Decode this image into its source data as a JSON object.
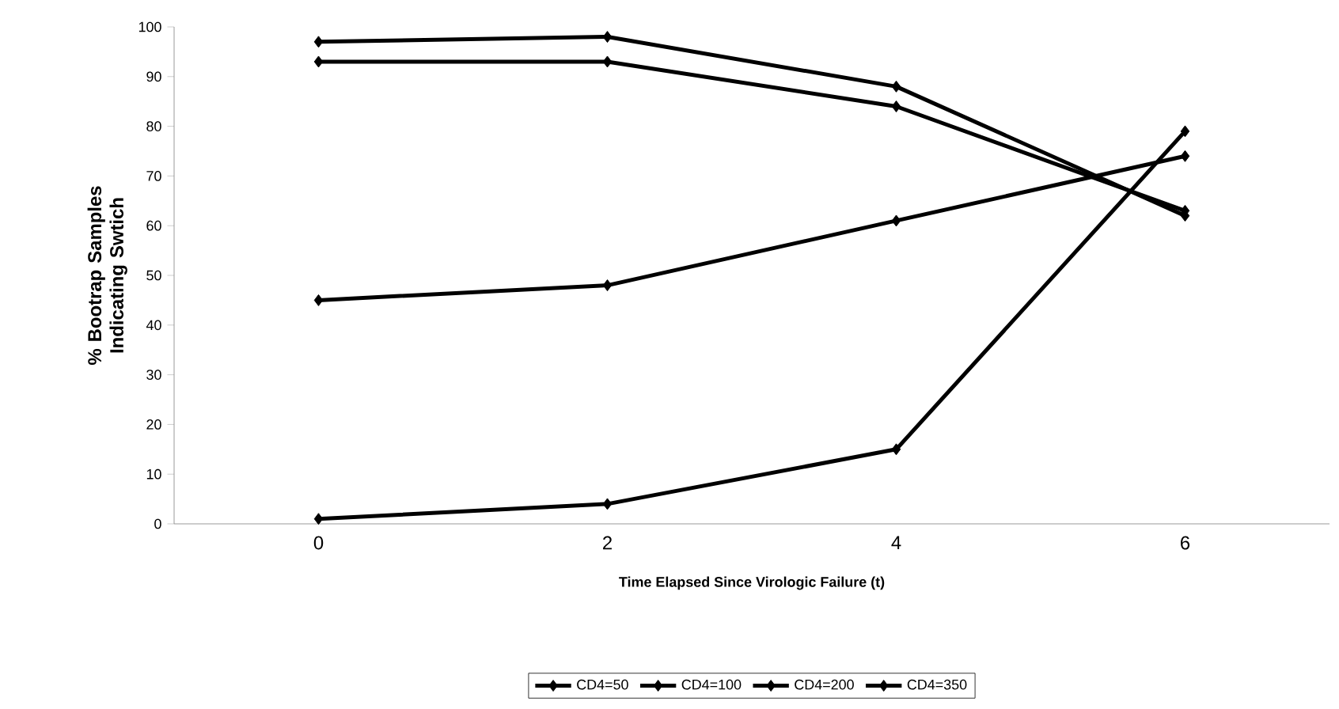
{
  "chart_data": {
    "type": "line",
    "xlabel": "Time Elapsed Since Virologic Failure (t)",
    "ylabel": "% Bootrap Samples Indicating Swtich",
    "categories": [
      "0",
      "2",
      "4",
      "6"
    ],
    "series": [
      {
        "name": "CD4=50",
        "color": "#000000",
        "values": [
          97,
          98,
          88,
          62
        ]
      },
      {
        "name": "CD4=100",
        "color": "#000000",
        "values": [
          93,
          93,
          84,
          63
        ]
      },
      {
        "name": "CD4=200",
        "color": "#000000",
        "values": [
          45,
          48,
          61,
          74
        ]
      },
      {
        "name": "CD4=350",
        "color": "#000000",
        "values": [
          1,
          4,
          15,
          79
        ]
      }
    ],
    "ylim": [
      0,
      100
    ],
    "yticks": [
      0,
      10,
      20,
      30,
      40,
      50,
      60,
      70,
      80,
      90,
      100
    ],
    "grid": false,
    "legend": "bottom",
    "marker": "diamond",
    "line_style": "solid"
  }
}
